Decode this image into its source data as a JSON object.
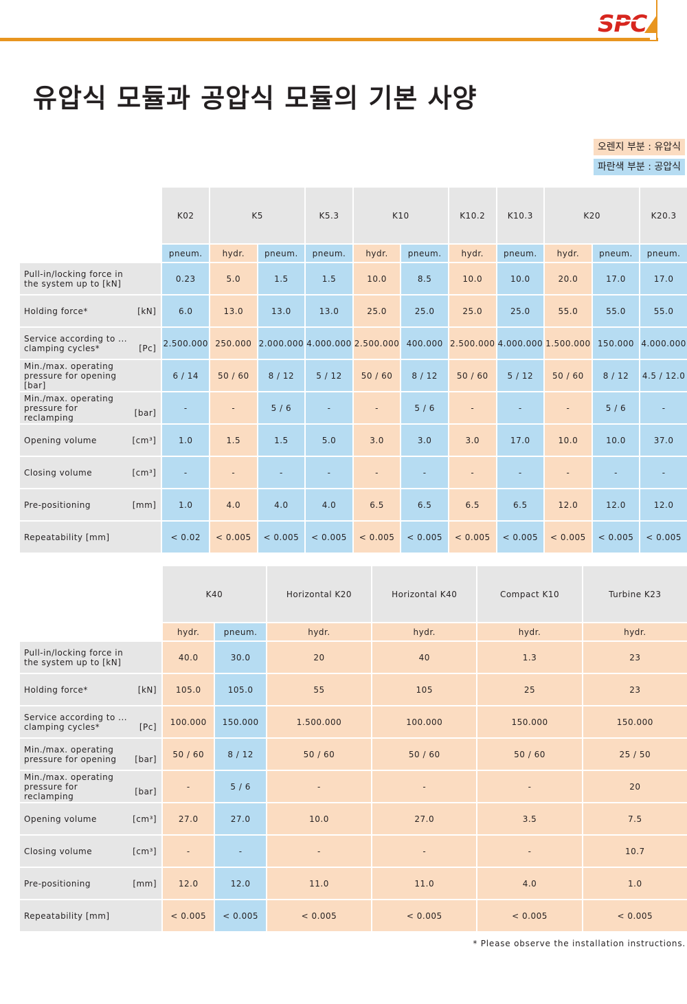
{
  "brand": {
    "logo_text": "SPC",
    "accent_color": "#e8951f",
    "logo_color": "#d7261e"
  },
  "title": "유압식 모듈과 공압식 모듈의 기본 사양",
  "legend": {
    "hydraulic": "오렌지 부분 : 유압식",
    "pneumatic": "파란색 부분 : 공압식"
  },
  "colors": {
    "hydraulic": "#fbdcc1",
    "pneumatic": "#b6dcf2",
    "header": "#e6e6e6"
  },
  "table1": {
    "models": [
      {
        "name": "K02",
        "span": 1
      },
      {
        "name": "K5",
        "span": 2
      },
      {
        "name": "K5.3",
        "span": 1
      },
      {
        "name": "K10",
        "span": 2
      },
      {
        "name": "K10.2",
        "span": 1
      },
      {
        "name": "K10.3",
        "span": 1
      },
      {
        "name": "K20",
        "span": 2
      },
      {
        "name": "K20.3",
        "span": 1
      }
    ],
    "types": [
      "pneum.",
      "hydr.",
      "pneum.",
      "pneum.",
      "hydr.",
      "pneum.",
      "hydr.",
      "pneum.",
      "hydr.",
      "pneum.",
      "pneum."
    ],
    "rows": [
      {
        "label": "Pull-in/locking force in the system up to [kN]",
        "unit": "",
        "values": [
          "0.23",
          "5.0",
          "1.5",
          "1.5",
          "10.0",
          "8.5",
          "10.0",
          "10.0",
          "20.0",
          "17.0",
          "17.0"
        ]
      },
      {
        "label": "Holding force*",
        "unit": "[kN]",
        "values": [
          "6.0",
          "13.0",
          "13.0",
          "13.0",
          "25.0",
          "25.0",
          "25.0",
          "25.0",
          "55.0",
          "55.0",
          "55.0"
        ]
      },
      {
        "label": "Service according to ... clamping cycles*",
        "unit": "[Pc]",
        "values": [
          "2.500.000",
          "250.000",
          "2.000.000",
          "4.000.000",
          "2.500.000",
          "400.000",
          "2.500.000",
          "4.000.000",
          "1.500.000",
          "150.000",
          "4.000.000"
        ]
      },
      {
        "label": "Min./max. operating pressure for opening [bar]",
        "unit": "",
        "values": [
          "6 / 14",
          "50 / 60",
          "8 / 12",
          "5 / 12",
          "50 / 60",
          "8 / 12",
          "50 / 60",
          "5 / 12",
          "50 / 60",
          "8 / 12",
          "4.5 / 12.0"
        ]
      },
      {
        "label": "Min./max. operating pressure for reclamping",
        "unit": "[bar]",
        "values": [
          "-",
          "-",
          "5 / 6",
          "-",
          "-",
          "5 / 6",
          "-",
          "-",
          "-",
          "5 / 6",
          "-"
        ]
      },
      {
        "label": "Opening volume",
        "unit": "[cm³]",
        "values": [
          "1.0",
          "1.5",
          "1.5",
          "5.0",
          "3.0",
          "3.0",
          "3.0",
          "17.0",
          "10.0",
          "10.0",
          "37.0"
        ]
      },
      {
        "label": "Closing volume",
        "unit": "[cm³]",
        "values": [
          "-",
          "-",
          "-",
          "-",
          "-",
          "-",
          "-",
          "-",
          "-",
          "-",
          "-"
        ]
      },
      {
        "label": "Pre-positioning",
        "unit": "[mm]",
        "values": [
          "1.0",
          "4.0",
          "4.0",
          "4.0",
          "6.5",
          "6.5",
          "6.5",
          "6.5",
          "12.0",
          "12.0",
          "12.0"
        ]
      },
      {
        "label": "Repeatability [mm]",
        "unit": "",
        "values": [
          "< 0.02",
          "< 0.005",
          "< 0.005",
          "< 0.005",
          "< 0.005",
          "< 0.005",
          "< 0.005",
          "< 0.005",
          "< 0.005",
          "< 0.005",
          "< 0.005"
        ]
      }
    ]
  },
  "table2": {
    "models": [
      {
        "name": "K40",
        "span": 2
      },
      {
        "name": "Horizontal K20",
        "span": 1
      },
      {
        "name": "Horizontal K40",
        "span": 1
      },
      {
        "name": "Compact K10",
        "span": 1
      },
      {
        "name": "Turbine K23",
        "span": 1
      }
    ],
    "types": [
      "hydr.",
      "pneum.",
      "hydr.",
      "hydr.",
      "hydr.",
      "hydr."
    ],
    "rows": [
      {
        "label": "Pull-in/locking force in the system up to [kN]",
        "unit": "",
        "values": [
          "40.0",
          "30.0",
          "20",
          "40",
          "1.3",
          "23"
        ]
      },
      {
        "label": "Holding force*",
        "unit": "[kN]",
        "values": [
          "105.0",
          "105.0",
          "55",
          "105",
          "25",
          "23"
        ]
      },
      {
        "label": "Service according to ... clamping cycles*",
        "unit": "[Pc]",
        "values": [
          "100.000",
          "150.000",
          "1.500.000",
          "100.000",
          "150.000",
          "150.000"
        ]
      },
      {
        "label": "Min./max. operating pressure for opening",
        "unit": "[bar]",
        "values": [
          "50 / 60",
          "8 / 12",
          "50 / 60",
          "50 / 60",
          "50 / 60",
          "25 / 50"
        ]
      },
      {
        "label": "Min./max. operating pressure for reclamping",
        "unit": "[bar]",
        "values": [
          "-",
          "5 / 6",
          "-",
          "-",
          "-",
          "20"
        ]
      },
      {
        "label": "Opening volume",
        "unit": "[cm³]",
        "values": [
          "27.0",
          "27.0",
          "10.0",
          "27.0",
          "3.5",
          "7.5"
        ]
      },
      {
        "label": "Closing volume",
        "unit": "[cm³]",
        "values": [
          "-",
          "-",
          "-",
          "-",
          "-",
          "10.7"
        ]
      },
      {
        "label": "Pre-positioning",
        "unit": "[mm]",
        "values": [
          "12.0",
          "12.0",
          "11.0",
          "11.0",
          "4.0",
          "1.0"
        ]
      },
      {
        "label": "Repeatability [mm]",
        "unit": "",
        "values": [
          "< 0.005",
          "< 0.005",
          "< 0.005",
          "< 0.005",
          "< 0.005",
          "< 0.005"
        ]
      }
    ]
  },
  "footnote": "* Please observe the installation instructions."
}
